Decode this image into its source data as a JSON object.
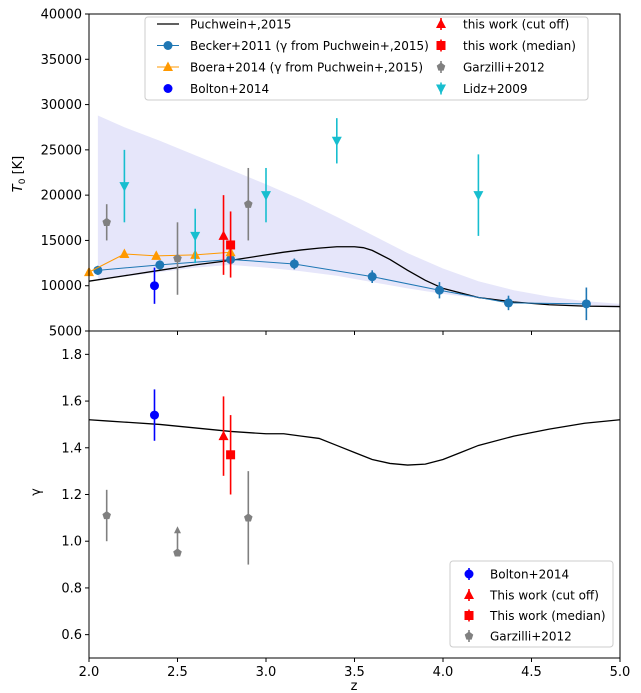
{
  "chart_data": [
    {
      "panel": "top",
      "type": "scatter",
      "xlabel": "",
      "ylabel": "T_0 [K]",
      "ylabel_main": "T",
      "ylabel_sub": "0",
      "ylabel_unit": " [K]",
      "xlim": [
        2.0,
        5.0
      ],
      "ylim": [
        5000,
        40000
      ],
      "y_ticks": [
        "5000",
        "10000",
        "15000",
        "20000",
        "25000",
        "30000",
        "35000",
        "40000"
      ],
      "grid": false,
      "legend_placement": "top",
      "shaded_band": {
        "color": "#e6e6fa",
        "x": [
          2.05,
          2.2,
          2.4,
          2.6,
          2.8,
          3.0,
          3.2,
          3.4,
          3.6,
          3.8,
          4.0,
          4.2,
          4.4,
          4.6,
          4.8,
          5.0
        ],
        "upper": [
          28800,
          27500,
          26000,
          24400,
          22800,
          21200,
          19500,
          17600,
          15600,
          13600,
          11900,
          10500,
          9500,
          8800,
          8300,
          8000
        ],
        "lower": [
          10600,
          11000,
          11500,
          12000,
          12300,
          12000,
          11600,
          11100,
          10400,
          9700,
          9100,
          8600,
          8200,
          7900,
          7700,
          7600
        ]
      },
      "series": [
        {
          "name": "Puchwein+,2015",
          "marker": "line",
          "color": "#000000",
          "x": [
            2.0,
            2.2,
            2.4,
            2.6,
            2.8,
            3.0,
            3.1,
            3.2,
            3.3,
            3.4,
            3.5,
            3.55,
            3.6,
            3.7,
            3.8,
            3.9,
            4.0,
            4.2,
            4.4,
            4.6,
            4.8,
            5.0
          ],
          "y": [
            10500,
            11100,
            11700,
            12300,
            12800,
            13400,
            13700,
            13950,
            14150,
            14300,
            14300,
            14200,
            13900,
            12900,
            11700,
            10600,
            9700,
            8700,
            8200,
            7900,
            7750,
            7700
          ]
        },
        {
          "name": "Becker+2011 (γ from Puchwein+,2015)",
          "marker": "circle",
          "color": "#1f77b4",
          "connected": true,
          "x": [
            2.05,
            2.4,
            2.8,
            3.16,
            3.6,
            3.98,
            4.37,
            4.81
          ],
          "y": [
            11700,
            12300,
            12900,
            12400,
            11000,
            9500,
            8100,
            8000
          ],
          "yerr": [
            500,
            500,
            600,
            600,
            700,
            900,
            800,
            1800
          ]
        },
        {
          "name": "Boera+2014 (γ from Puchwein+,2015)",
          "marker": "triangle-up",
          "color": "#ff9900",
          "connected": true,
          "x": [
            2.0,
            2.2,
            2.38,
            2.6,
            2.8
          ],
          "y": [
            11500,
            13500,
            13300,
            13400,
            13700
          ],
          "yerr": [
            400,
            300,
            300,
            300,
            400
          ]
        },
        {
          "name": "Bolton+2014",
          "marker": "circle",
          "color": "#0000ff",
          "x": [
            2.37
          ],
          "y": [
            10000
          ],
          "yerr": [
            2000
          ]
        },
        {
          "name": "this work (cut off)",
          "marker": "triangle-up",
          "color": "#ff0000",
          "x": [
            2.76
          ],
          "y": [
            15500
          ],
          "yerr_low": [
            4300
          ],
          "yerr_high": [
            4500
          ]
        },
        {
          "name": "this work (median)",
          "marker": "square",
          "color": "#ff0000",
          "x": [
            2.8
          ],
          "y": [
            14500
          ],
          "yerr_low": [
            3600
          ],
          "yerr_high": [
            3700
          ]
        },
        {
          "name": "Garzilli+2012",
          "marker": "pentagon",
          "color": "#808080",
          "x": [
            2.1,
            2.5,
            2.9
          ],
          "y": [
            17000,
            13000,
            19000
          ],
          "yerr": [
            2000,
            4000,
            4000
          ]
        },
        {
          "name": "Lidz+2009",
          "marker": "triangle-down",
          "color": "#17becf",
          "x": [
            2.2,
            2.6,
            3.0,
            3.4,
            4.2
          ],
          "y": [
            21000,
            15500,
            20000,
            26000,
            20000
          ],
          "yerr": [
            4000,
            3000,
            3000,
            2500,
            4500
          ]
        }
      ],
      "legend_left": [
        "Puchwein+,2015",
        "Becker+2011 (γ from Puchwein+,2015)",
        "Boera+2014 (γ from Puchwein+,2015)",
        "Bolton+2014"
      ],
      "legend_right": [
        "this work (cut off)",
        "this work (median)",
        "Garzilli+2012",
        "Lidz+2009"
      ]
    },
    {
      "panel": "bottom",
      "type": "scatter",
      "xlabel": "z",
      "ylabel": "γ",
      "xlim": [
        2.0,
        5.0
      ],
      "ylim": [
        0.5,
        1.9
      ],
      "x_ticks": [
        "2.0",
        "2.5",
        "3.0",
        "3.5",
        "4.0",
        "4.5",
        "5.0"
      ],
      "y_ticks": [
        "0.6",
        "0.8",
        "1.0",
        "1.2",
        "1.4",
        "1.6",
        "1.8"
      ],
      "grid": false,
      "legend_placement": "lower right",
      "series": [
        {
          "name": "",
          "marker": "line",
          "color": "#000000",
          "x": [
            2.0,
            2.1,
            2.2,
            2.4,
            2.6,
            2.8,
            3.0,
            3.1,
            3.2,
            3.3,
            3.4,
            3.5,
            3.6,
            3.7,
            3.8,
            3.9,
            4.0,
            4.1,
            4.2,
            4.4,
            4.6,
            4.8,
            5.0
          ],
          "y": [
            1.52,
            1.515,
            1.51,
            1.5,
            1.485,
            1.47,
            1.46,
            1.46,
            1.45,
            1.44,
            1.41,
            1.38,
            1.35,
            1.333,
            1.326,
            1.33,
            1.35,
            1.38,
            1.41,
            1.45,
            1.48,
            1.505,
            1.52
          ]
        },
        {
          "name": "Bolton+2014",
          "marker": "circle",
          "color": "#0000ff",
          "x": [
            2.37
          ],
          "y": [
            1.54
          ],
          "yerr": [
            0.11
          ]
        },
        {
          "name": "This work (cut off)",
          "marker": "triangle-up",
          "color": "#ff0000",
          "x": [
            2.76
          ],
          "y": [
            1.45
          ],
          "yerr_low": [
            0.17
          ],
          "yerr_high": [
            0.17
          ]
        },
        {
          "name": "This work (median)",
          "marker": "square",
          "color": "#ff0000",
          "x": [
            2.8
          ],
          "y": [
            1.37
          ],
          "yerr_low": [
            0.17
          ],
          "yerr_high": [
            0.17
          ]
        },
        {
          "name": "Garzilli+2012",
          "marker": "pentagon",
          "color": "#808080",
          "x": [
            2.1,
            2.9
          ],
          "y": [
            1.11,
            1.1
          ],
          "yerr": [
            0.11,
            0.2
          ]
        },
        {
          "name": "Garzilli+2012 lower limit",
          "marker": "pentagon-uparrow",
          "color": "#808080",
          "x": [
            2.5
          ],
          "y": [
            0.95
          ],
          "arrow_to": 1.06
        }
      ],
      "legend": [
        "Bolton+2014",
        "This work (cut off)",
        "This work (median)",
        "Garzilli+2012"
      ]
    }
  ]
}
